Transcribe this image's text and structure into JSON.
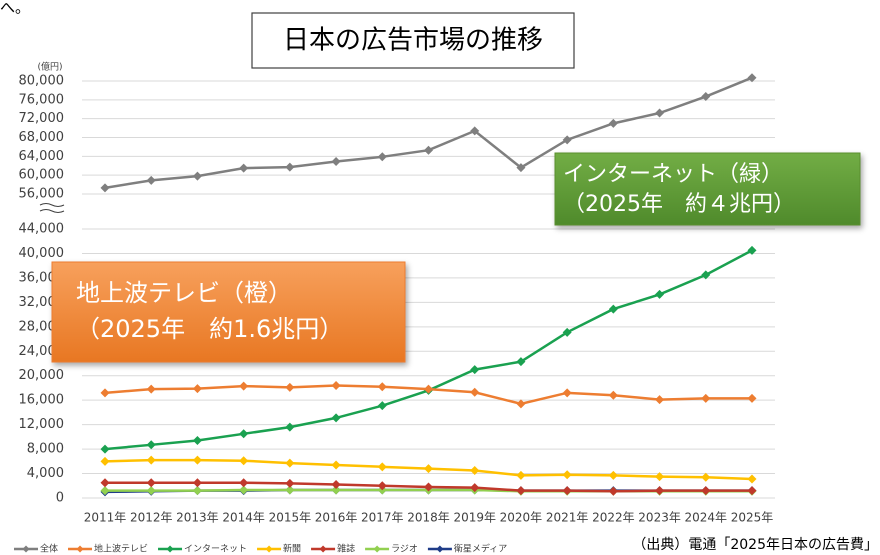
{
  "fragment": "へ。",
  "chart_data": {
    "type": "line",
    "title": "日本の広告市場の推移",
    "y_unit": "(億円)",
    "source": "（出典）電通「2025年日本の広告費」",
    "annotations": [
      {
        "lines": [
          "地上波テレビ（橙）",
          "（2025年　約1.6兆円）"
        ],
        "color": "#ed7d31"
      },
      {
        "lines": [
          "インターネット（緑）",
          "（2025年　約４兆円）"
        ],
        "color": "#5a8f2e"
      }
    ],
    "categories": [
      "2011年",
      "2012年",
      "2013年",
      "2014年",
      "2015年",
      "2016年",
      "2017年",
      "2018年",
      "2019年",
      "2020年",
      "2021年",
      "2022年",
      "2023年",
      "2024年",
      "2025年"
    ],
    "series": [
      {
        "name": "全体",
        "color": "#7f7f7f",
        "values": [
          57300,
          58900,
          59800,
          61500,
          61700,
          62900,
          63900,
          65300,
          69400,
          61600,
          67500,
          71000,
          73200,
          76700,
          80700
        ]
      },
      {
        "name": "地上波テレビ",
        "color": "#ed7d31",
        "values": [
          17200,
          17800,
          17900,
          18300,
          18100,
          18400,
          18200,
          17800,
          17300,
          15400,
          17200,
          16800,
          16100,
          16300,
          16300
        ]
      },
      {
        "name": "インターネット",
        "color": "#1aa150",
        "values": [
          8000,
          8700,
          9400,
          10500,
          11600,
          13100,
          15100,
          17600,
          21000,
          22300,
          27100,
          30900,
          33300,
          36500,
          40500
        ]
      },
      {
        "name": "新聞",
        "color": "#ffc000",
        "values": [
          6000,
          6200,
          6200,
          6100,
          5700,
          5400,
          5100,
          4800,
          4500,
          3700,
          3800,
          3700,
          3500,
          3400,
          3100
        ]
      },
      {
        "name": "雑誌",
        "color": "#c0392b",
        "values": [
          2500,
          2500,
          2500,
          2500,
          2400,
          2200,
          2000,
          1800,
          1700,
          1200,
          1200,
          1100,
          1200,
          1200,
          1200
        ]
      },
      {
        "name": "ラジオ",
        "color": "#92d050",
        "values": [
          1200,
          1200,
          1200,
          1300,
          1300,
          1300,
          1300,
          1300,
          1300,
          1100,
          1100,
          1100,
          1100,
          1100,
          1100
        ]
      },
      {
        "name": "衛星メディア",
        "color": "#1f3c88",
        "values": [
          1000,
          1100,
          1200,
          1200,
          1300,
          1300,
          1300,
          1300,
          1300,
          1200,
          1200,
          1200,
          1200,
          1200,
          1200
        ]
      }
    ],
    "ylim": [
      0,
      80000
    ],
    "axis_break": [
      44000,
      56000
    ],
    "yticks": [
      0,
      {
        "value": 4000,
        "label": "4,000"
      },
      {
        "value": 8000,
        "label": "8,000"
      },
      {
        "value": 12000,
        "label": "12,000"
      },
      {
        "value": 16000,
        "label": "16,000"
      },
      {
        "value": 20000,
        "label": "20,000"
      },
      {
        "value": 24000,
        "label": "24,000"
      },
      {
        "value": 28000,
        "label": "28,000"
      },
      {
        "value": 32000,
        "label": "32,000"
      },
      {
        "value": 36000,
        "label": "36,000"
      },
      {
        "value": 40000,
        "label": "40,000"
      },
      {
        "value": 44000,
        "label": "44,000"
      },
      {
        "value": 56000,
        "label": "56,000"
      },
      {
        "value": 60000,
        "label": "60,000"
      },
      {
        "value": 64000,
        "label": "64,000"
      },
      {
        "value": 68000,
        "label": "68,000"
      },
      {
        "value": 72000,
        "label": "72,000"
      },
      {
        "value": 76000,
        "label": "76,000"
      },
      {
        "value": 80000,
        "label": "80,000"
      }
    ],
    "grid": true,
    "legend": "bottom"
  }
}
